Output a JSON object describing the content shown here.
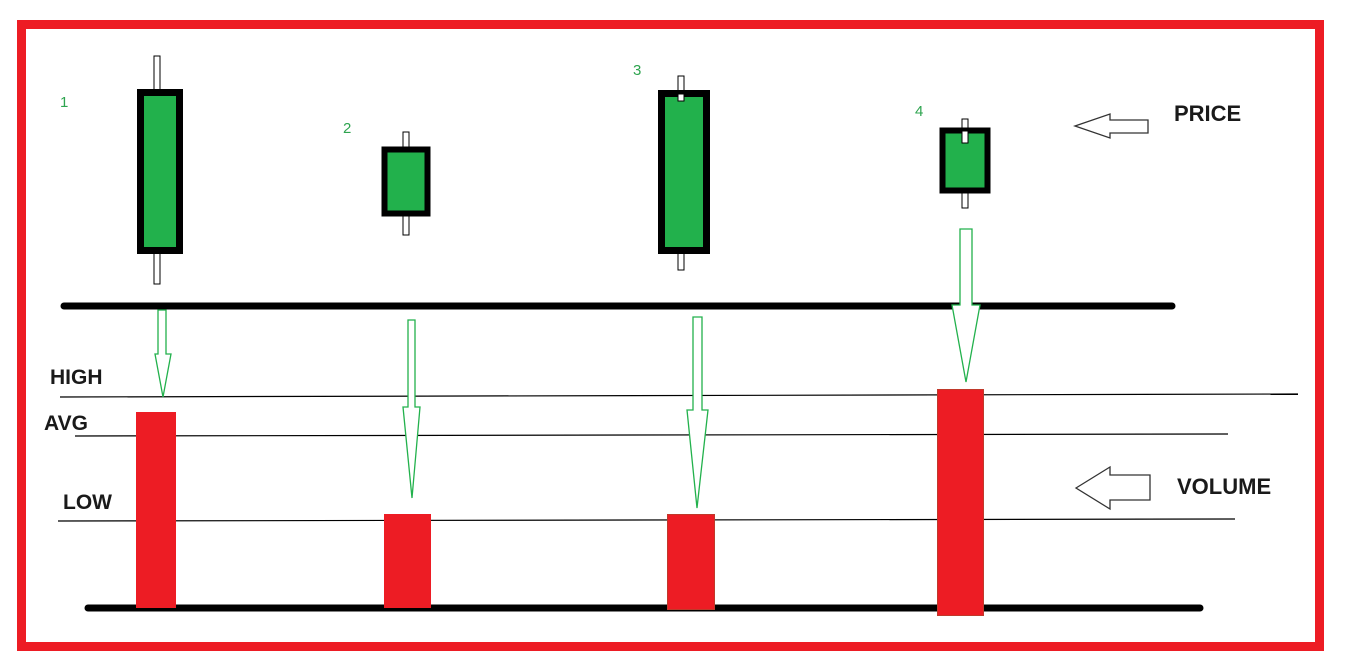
{
  "labels": {
    "price": "PRICE",
    "volume": "VOLUME",
    "high": "HIGH",
    "avg": "AVG",
    "low": "LOW"
  },
  "candles": [
    {
      "number": "1"
    },
    {
      "number": "2"
    },
    {
      "number": "3"
    },
    {
      "number": "4"
    }
  ],
  "colors": {
    "frame": "#ed1c24",
    "candle_body": "#22b14c",
    "volume_bar": "#ed1c24",
    "arrow_outline": "#22b14c",
    "number_text": "#2ea44f",
    "line": "#000000"
  }
}
